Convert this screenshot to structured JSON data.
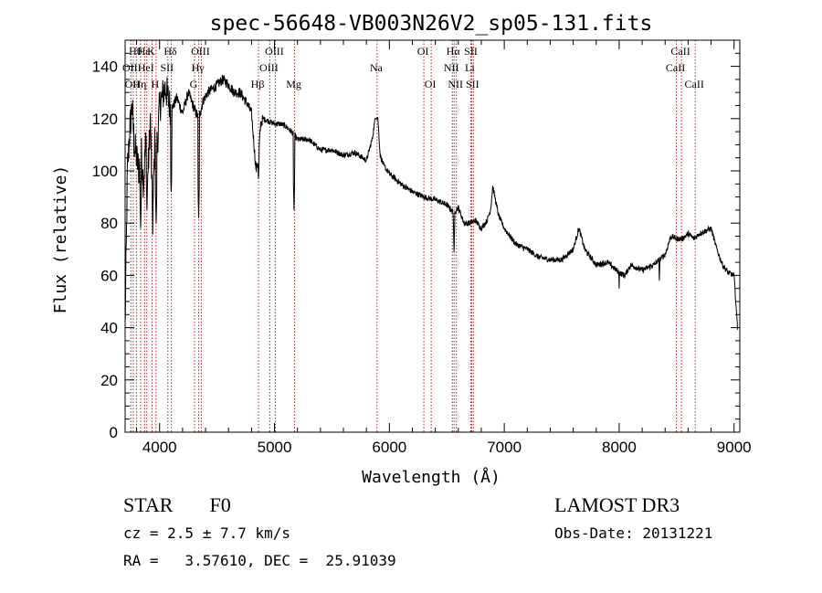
{
  "chart_data": {
    "type": "line",
    "title": "spec-56648-VB003N26V2_sp05-131.fits",
    "xlabel": "Wavelength (Å)",
    "ylabel": "Flux (relative)",
    "xlim": [
      3700,
      9050
    ],
    "ylim": [
      0,
      150
    ],
    "xticks": [
      4000,
      5000,
      6000,
      7000,
      8000,
      9000
    ],
    "yticks": [
      0,
      20,
      40,
      60,
      80,
      100,
      120,
      140
    ],
    "spectrum_anchors": {
      "x": [
        3700,
        3720,
        3740,
        3760,
        3780,
        3800,
        3820,
        3840,
        3860,
        3880,
        3900,
        3920,
        3940,
        3960,
        3980,
        4000,
        4050,
        4100,
        4150,
        4200,
        4250,
        4300,
        4340,
        4380,
        4420,
        4480,
        4550,
        4600,
        4650,
        4700,
        4760,
        4800,
        4840,
        4860,
        4880,
        4900,
        4950,
        5000,
        5050,
        5100,
        5170,
        5200,
        5300,
        5400,
        5500,
        5600,
        5700,
        5800,
        5850,
        5880,
        5900,
        5920,
        5950,
        6000,
        6100,
        6200,
        6300,
        6400,
        6500,
        6560,
        6600,
        6650,
        6700,
        6750,
        6800,
        6850,
        6880,
        6900,
        6950,
        7000,
        7100,
        7200,
        7300,
        7400,
        7500,
        7600,
        7650,
        7700,
        7800,
        7900,
        8000,
        8050,
        8100,
        8200,
        8300,
        8400,
        8450,
        8500,
        8550,
        8600,
        8650,
        8700,
        8750,
        8800,
        8850,
        8900,
        8950,
        9000,
        9030
      ],
      "y": [
        40,
        100,
        115,
        125,
        110,
        105,
        100,
        108,
        95,
        112,
        100,
        120,
        80,
        115,
        110,
        125,
        132,
        123,
        128,
        122,
        130,
        124,
        120,
        127,
        130,
        132,
        135,
        133,
        130,
        130,
        126,
        122,
        100,
        105,
        118,
        120,
        119,
        118,
        118,
        117,
        114,
        112,
        112,
        108,
        108,
        106,
        107,
        104,
        112,
        121,
        120,
        106,
        102,
        99,
        95,
        92,
        90,
        89,
        87,
        84,
        86,
        80,
        80,
        81,
        78,
        81,
        85,
        94,
        83,
        78,
        72,
        70,
        67,
        66,
        66,
        70,
        78,
        70,
        64,
        65,
        61,
        60,
        64,
        62,
        64,
        68,
        75,
        74,
        74,
        76,
        74,
        76,
        77,
        78,
        70,
        64,
        61,
        60,
        40
      ],
      "sharp_dips": [
        {
          "x": 3835,
          "y": 78
        },
        {
          "x": 3890,
          "y": 85
        },
        {
          "x": 3970,
          "y": 80
        },
        {
          "x": 4101,
          "y": 90
        },
        {
          "x": 4340,
          "y": 82
        },
        {
          "x": 4861,
          "y": 95
        },
        {
          "x": 5170,
          "y": 85
        },
        {
          "x": 6563,
          "y": 68
        },
        {
          "x": 8000,
          "y": 55
        },
        {
          "x": 8350,
          "y": 58
        }
      ]
    },
    "reference_lines": [
      {
        "x": 3750,
        "label": "OII",
        "row": 1
      },
      {
        "x": 3771,
        "label": "OII",
        "row": 2
      },
      {
        "x": 3798,
        "label": "Hθ",
        "row": 0
      },
      {
        "x": 3835,
        "label": "Hη",
        "row": 2
      },
      {
        "x": 3870,
        "label": "Hε",
        "row": 0
      },
      {
        "x": 3889,
        "label": "HeI",
        "row": 1
      },
      {
        "x": 3934,
        "label": "K",
        "row": 0
      },
      {
        "x": 3969,
        "label": "H",
        "row": 2
      },
      {
        "x": 4072,
        "label": "SII",
        "row": 1
      },
      {
        "x": 4102,
        "label": "Hδ",
        "row": 0
      },
      {
        "x": 4304,
        "label": "G",
        "row": 2
      },
      {
        "x": 4341,
        "label": "Hγ",
        "row": 1
      },
      {
        "x": 4363,
        "label": "OIII",
        "row": 0
      },
      {
        "x": 4861,
        "label": "Hβ",
        "row": 2
      },
      {
        "x": 4959,
        "label": "OIII",
        "row": 1
      },
      {
        "x": 5007,
        "label": "OIII",
        "row": 0
      },
      {
        "x": 5175,
        "label": "Mg",
        "row": 2
      },
      {
        "x": 5893,
        "label": "Na",
        "row": 1
      },
      {
        "x": 6300,
        "label": "OI",
        "row": 0
      },
      {
        "x": 6364,
        "label": "OI",
        "row": 2
      },
      {
        "x": 6548,
        "label": "NII",
        "row": 1
      },
      {
        "x": 6563,
        "label": "Hα",
        "row": 0
      },
      {
        "x": 6583,
        "label": "NII",
        "row": 2
      },
      {
        "x": 6708,
        "label": "Li",
        "row": 1
      },
      {
        "x": 6717,
        "label": "SII",
        "row": 0
      },
      {
        "x": 6731,
        "label": "SII",
        "row": 2
      },
      {
        "x": 8498,
        "label": "CaII",
        "row": 1
      },
      {
        "x": 8542,
        "label": "CaII",
        "row": 0
      },
      {
        "x": 8662,
        "label": "CaII",
        "row": 2
      }
    ]
  },
  "info": {
    "class_label": "STAR",
    "subclass": "F0",
    "survey": "LAMOST DR3",
    "redshift": "cz = 2.5 ± 7.7 km/s",
    "obs_date": "Obs-Date: 20131221",
    "coords": "RA =   3.57610, DEC =  25.91039"
  }
}
